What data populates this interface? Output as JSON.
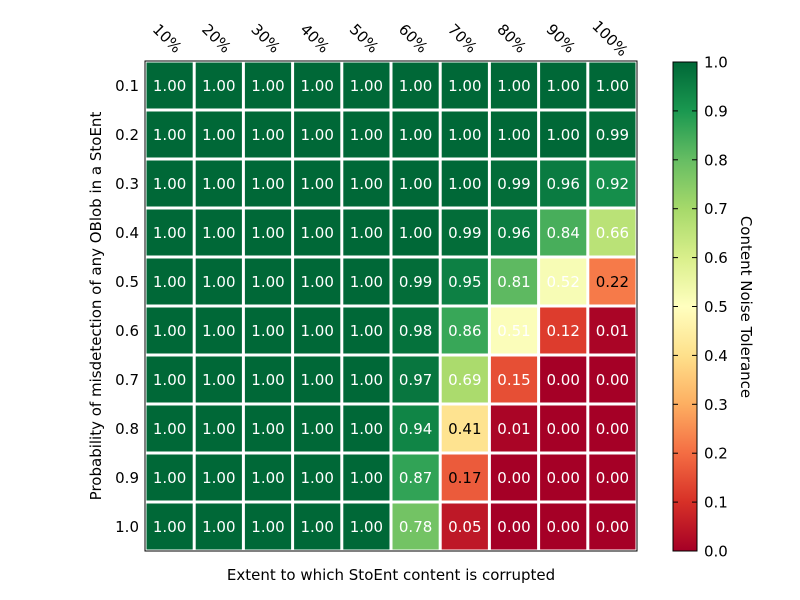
{
  "chart_data": {
    "type": "heatmap",
    "title": "",
    "xlabel": "Extent to which StoEnt content is corrupted",
    "ylabel": "Probability of misdetection of any OBlob in a StoEnt",
    "x_categories": [
      "10%",
      "20%",
      "30%",
      "40%",
      "50%",
      "60%",
      "70%",
      "80%",
      "90%",
      "100%"
    ],
    "y_categories": [
      "0.1",
      "0.2",
      "0.3",
      "0.4",
      "0.5",
      "0.6",
      "0.7",
      "0.8",
      "0.9",
      "1.0"
    ],
    "values": [
      [
        1.0,
        1.0,
        1.0,
        1.0,
        1.0,
        1.0,
        1.0,
        1.0,
        1.0,
        1.0
      ],
      [
        1.0,
        1.0,
        1.0,
        1.0,
        1.0,
        1.0,
        1.0,
        1.0,
        1.0,
        0.99
      ],
      [
        1.0,
        1.0,
        1.0,
        1.0,
        1.0,
        1.0,
        1.0,
        0.99,
        0.96,
        0.92
      ],
      [
        1.0,
        1.0,
        1.0,
        1.0,
        1.0,
        1.0,
        0.99,
        0.96,
        0.84,
        0.66
      ],
      [
        1.0,
        1.0,
        1.0,
        1.0,
        1.0,
        0.99,
        0.95,
        0.81,
        0.52,
        0.22
      ],
      [
        1.0,
        1.0,
        1.0,
        1.0,
        1.0,
        0.98,
        0.86,
        0.51,
        0.12,
        0.01
      ],
      [
        1.0,
        1.0,
        1.0,
        1.0,
        1.0,
        0.97,
        0.69,
        0.15,
        0.0,
        0.0
      ],
      [
        1.0,
        1.0,
        1.0,
        1.0,
        1.0,
        0.94,
        0.41,
        0.01,
        0.0,
        0.0
      ],
      [
        1.0,
        1.0,
        1.0,
        1.0,
        1.0,
        0.87,
        0.17,
        0.0,
        0.0,
        0.0
      ],
      [
        1.0,
        1.0,
        1.0,
        1.0,
        1.0,
        0.78,
        0.05,
        0.0,
        0.0,
        0.0
      ]
    ],
    "colorbar": {
      "label": "Content Noise Tolerance",
      "range": [
        0.0,
        1.0
      ],
      "ticks": [
        "0.0",
        "0.1",
        "0.2",
        "0.3",
        "0.4",
        "0.5",
        "0.6",
        "0.7",
        "0.8",
        "0.9",
        "1.0"
      ],
      "colormap": "RdYlGn",
      "colors": [
        "#a50026",
        "#d73027",
        "#f46d43",
        "#fdae61",
        "#fee08b",
        "#ffffbf",
        "#d9ef8b",
        "#a6d96a",
        "#66bd63",
        "#1a9850",
        "#006837"
      ]
    },
    "grid": true,
    "legend": "colorbar-right"
  }
}
